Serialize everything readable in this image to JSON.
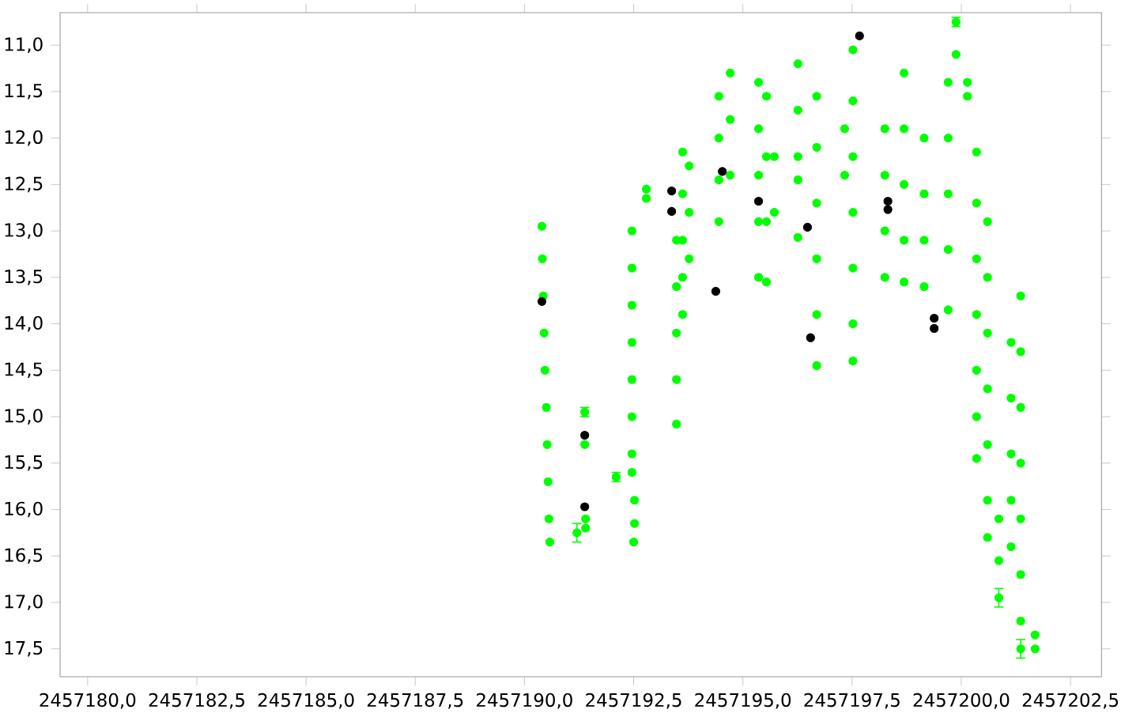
{
  "chart_data": {
    "type": "scatter",
    "marker": "circle",
    "xlim": [
      2457179.37,
      2457203.21
    ],
    "ylim": [
      17.8,
      10.65
    ],
    "xticks": [
      {
        "value": 2457180.0,
        "label": "2457180,0"
      },
      {
        "value": 2457182.5,
        "label": "2457182,5"
      },
      {
        "value": 2457185.0,
        "label": "2457185,0"
      },
      {
        "value": 2457187.5,
        "label": "2457187,5"
      },
      {
        "value": 2457190.0,
        "label": "2457190,0"
      },
      {
        "value": 2457192.5,
        "label": "2457192,5"
      },
      {
        "value": 2457195.0,
        "label": "2457195,0"
      },
      {
        "value": 2457197.5,
        "label": "2457197,5"
      },
      {
        "value": 2457200.0,
        "label": "2457200,0"
      },
      {
        "value": 2457202.5,
        "label": "2457202,5"
      }
    ],
    "yticks": [
      {
        "value": 11.0,
        "label": "11,0"
      },
      {
        "value": 11.5,
        "label": "11,5"
      },
      {
        "value": 12.0,
        "label": "12,0"
      },
      {
        "value": 12.5,
        "label": "12,5"
      },
      {
        "value": 13.0,
        "label": "13,0"
      },
      {
        "value": 13.5,
        "label": "13,5"
      },
      {
        "value": 14.0,
        "label": "14,0"
      },
      {
        "value": 14.5,
        "label": "14,5"
      },
      {
        "value": 15.0,
        "label": "15,0"
      },
      {
        "value": 15.5,
        "label": "15,5"
      },
      {
        "value": 16.0,
        "label": "16,0"
      },
      {
        "value": 16.5,
        "label": "16,5"
      },
      {
        "value": 17.0,
        "label": "17,0"
      },
      {
        "value": 17.5,
        "label": "17,5"
      }
    ],
    "series": [
      {
        "color": "#00ff00",
        "x": [
          2457190.4,
          2457190.41,
          2457190.43,
          2457190.45,
          2457190.47,
          2457190.5,
          2457190.52,
          2457190.54,
          2457190.56,
          2457190.58,
          2457191.2,
          2457191.38,
          2457191.38,
          2457191.4,
          2457191.4,
          2457192.1,
          2457192.46,
          2457192.46,
          2457192.46,
          2457192.46,
          2457192.46,
          2457192.46,
          2457192.46,
          2457192.46,
          2457192.52,
          2457192.52,
          2457192.5,
          2457192.79,
          2457192.79,
          2457193.48,
          2457193.48,
          2457193.48,
          2457193.48,
          2457193.48,
          2457193.62,
          2457193.62,
          2457193.62,
          2457193.62,
          2457193.62,
          2457193.77,
          2457193.77,
          2457193.77,
          2457194.45,
          2457194.45,
          2457194.45,
          2457194.45,
          2457194.71,
          2457194.71,
          2457194.71,
          2457195.36,
          2457195.36,
          2457195.36,
          2457195.36,
          2457195.36,
          2457195.54,
          2457195.54,
          2457195.54,
          2457195.54,
          2457195.72,
          2457195.72,
          2457196.26,
          2457196.26,
          2457196.26,
          2457196.26,
          2457196.26,
          2457196.69,
          2457196.69,
          2457196.69,
          2457196.69,
          2457196.69,
          2457196.69,
          2457197.33,
          2457197.33,
          2457197.52,
          2457197.52,
          2457197.52,
          2457197.52,
          2457197.52,
          2457197.52,
          2457197.52,
          2457198.25,
          2457198.25,
          2457198.25,
          2457198.25,
          2457198.69,
          2457198.69,
          2457198.69,
          2457198.69,
          2457198.69,
          2457199.15,
          2457199.15,
          2457199.15,
          2457199.15,
          2457199.7,
          2457199.7,
          2457199.7,
          2457199.7,
          2457199.7,
          2457199.88,
          2457199.88,
          2457200.14,
          2457200.14,
          2457200.35,
          2457200.35,
          2457200.35,
          2457200.35,
          2457200.35,
          2457200.35,
          2457200.35,
          2457200.6,
          2457200.6,
          2457200.6,
          2457200.6,
          2457200.6,
          2457200.6,
          2457200.6,
          2457200.86,
          2457200.86,
          2457200.86,
          2457201.14,
          2457201.14,
          2457201.14,
          2457201.14,
          2457201.14,
          2457201.36,
          2457201.36,
          2457201.36,
          2457201.36,
          2457201.36,
          2457201.36,
          2457201.36,
          2457201.36,
          2457201.69,
          2457201.69
        ],
        "values": [
          12.95,
          13.3,
          13.7,
          14.1,
          14.5,
          14.9,
          15.3,
          15.7,
          16.1,
          16.35,
          16.25,
          14.95,
          15.3,
          16.1,
          16.2,
          15.65,
          13.0,
          13.4,
          13.8,
          14.2,
          14.6,
          15.0,
          15.4,
          15.6,
          15.9,
          16.15,
          16.35,
          12.55,
          12.65,
          13.1,
          13.6,
          14.1,
          14.6,
          15.08,
          12.15,
          12.6,
          13.1,
          13.5,
          13.9,
          12.3,
          12.8,
          13.3,
          11.55,
          12.0,
          12.45,
          12.9,
          11.3,
          11.8,
          12.4,
          11.4,
          11.9,
          12.4,
          12.9,
          13.5,
          11.55,
          12.2,
          12.9,
          13.55,
          12.2,
          12.8,
          11.2,
          11.7,
          12.2,
          12.45,
          13.07,
          11.55,
          12.1,
          12.7,
          13.3,
          13.9,
          14.45,
          11.9,
          12.4,
          11.05,
          11.6,
          12.2,
          12.8,
          13.4,
          14.0,
          14.4,
          11.9,
          12.4,
          13.0,
          13.5,
          11.3,
          11.9,
          12.5,
          13.1,
          13.55,
          12.0,
          12.6,
          13.1,
          13.6,
          11.4,
          12.0,
          12.6,
          13.2,
          13.85,
          10.75,
          11.1,
          11.4,
          11.55,
          12.15,
          12.7,
          13.3,
          13.9,
          14.5,
          15.0,
          15.45,
          12.9,
          13.5,
          14.1,
          14.7,
          15.3,
          15.9,
          16.3,
          16.1,
          16.55,
          16.95,
          14.2,
          14.8,
          15.4,
          15.9,
          16.4,
          13.7,
          14.3,
          14.9,
          15.5,
          16.1,
          16.7,
          17.2,
          17.5,
          17.35,
          17.5
        ],
        "errors": [
          null,
          null,
          null,
          null,
          null,
          null,
          null,
          null,
          null,
          null,
          0.1,
          0.05,
          null,
          null,
          null,
          0.05,
          null,
          null,
          null,
          null,
          null,
          null,
          null,
          null,
          null,
          null,
          null,
          null,
          null,
          null,
          null,
          null,
          null,
          null,
          null,
          null,
          null,
          null,
          null,
          null,
          null,
          null,
          null,
          null,
          null,
          null,
          null,
          null,
          null,
          null,
          null,
          null,
          null,
          null,
          null,
          null,
          null,
          null,
          null,
          null,
          null,
          null,
          null,
          null,
          null,
          null,
          null,
          null,
          null,
          null,
          null,
          null,
          null,
          null,
          null,
          null,
          null,
          null,
          null,
          null,
          null,
          null,
          null,
          null,
          null,
          null,
          null,
          null,
          null,
          null,
          null,
          null,
          null,
          null,
          null,
          null,
          null,
          null,
          0.05,
          null,
          null,
          null,
          null,
          null,
          null,
          null,
          null,
          null,
          null,
          null,
          null,
          null,
          null,
          null,
          null,
          null,
          null,
          null,
          0.1,
          null,
          null,
          null,
          null,
          null,
          null,
          null,
          null,
          null,
          null,
          null,
          null,
          0.1,
          null,
          null
        ]
      },
      {
        "color": "#000000",
        "x": [
          2457190.4,
          2457191.38,
          2457191.38,
          2457193.37,
          2457193.37,
          2457194.38,
          2457194.53,
          2457195.36,
          2457196.48,
          2457196.55,
          2457197.67,
          2457198.32,
          2457198.32,
          2457199.38,
          2457199.38
        ],
        "values": [
          13.76,
          15.2,
          15.97,
          12.57,
          12.79,
          13.65,
          12.36,
          12.68,
          12.96,
          14.15,
          10.9,
          12.68,
          12.77,
          13.94,
          14.05
        ]
      }
    ]
  }
}
